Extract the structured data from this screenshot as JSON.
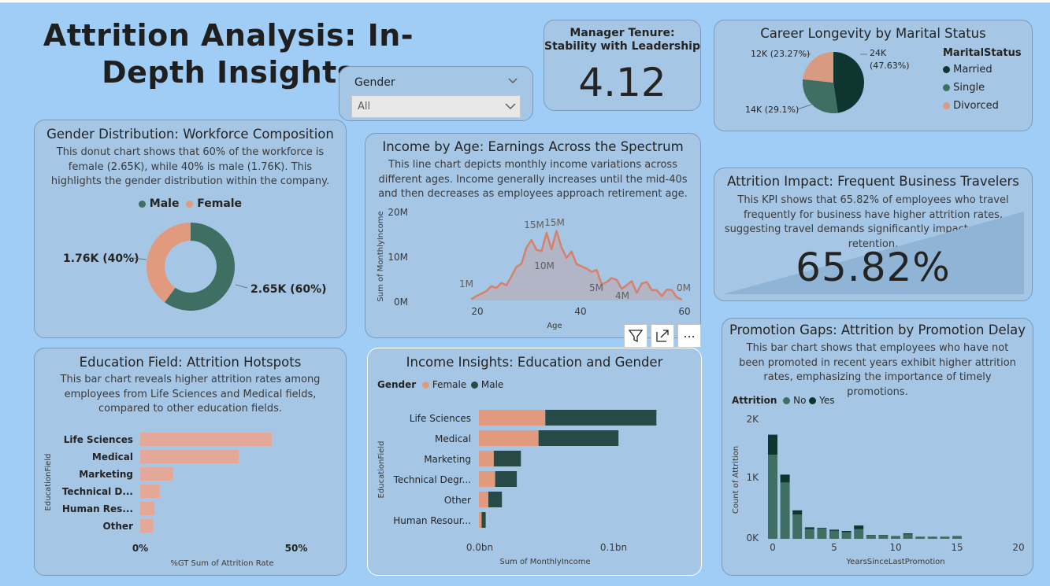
{
  "page_title": "Attrition Analysis: In-Depth Insights",
  "colors": {
    "background": "#9fcdf6",
    "card": "#a5c7e5",
    "male": "#3f6e63",
    "female": "#e19a7e",
    "married": "#0e3530",
    "single": "#3f6e63",
    "divorced": "#d99a82",
    "line": "#d98069",
    "bar_salmon": "#e4a899",
    "dark_teal": "#274a47"
  },
  "slicer": {
    "label": "Gender",
    "value": "All"
  },
  "manager_tenure": {
    "title_line1": "Manager Tenure:",
    "title_line2": "Stability with Leadership",
    "value": "4.12"
  },
  "marital": {
    "title": "Career Longevity by Marital Status",
    "legend_title": "MaritalStatus",
    "label_married_1": "24K",
    "label_married_2": "(47.63%)",
    "label_divorced": "12K (23.27%)",
    "label_single": "14K (29.1%)",
    "chart_data": {
      "type": "pie",
      "categories": [
        "Married",
        "Single",
        "Divorced"
      ],
      "values": [
        47.63,
        29.1,
        23.27
      ]
    }
  },
  "gender_dist": {
    "title": "Gender Distribution: Workforce Composition",
    "description": "This donut chart shows that 60% of the workforce is female (2.65K), while 40% is male (1.76K). This highlights the gender distribution within the company.",
    "legend": [
      "Male",
      "Female"
    ],
    "label_male": "1.76K (40%)",
    "label_female": "2.65K (60%)",
    "chart_data": {
      "type": "pie",
      "categories": [
        "Male",
        "Female"
      ],
      "values": [
        40,
        60
      ]
    }
  },
  "income_age": {
    "title": "Income by Age: Earnings Across the Spectrum",
    "description": "This line chart depicts monthly income variations across different ages. Income generally increases until the mid-40s and then decreases as employees approach retirement age.",
    "xlabel": "Age",
    "ylabel": "Sum of MonthlyIncome",
    "yticks": [
      "20M",
      "10M",
      "0M"
    ],
    "xticks": [
      "20",
      "40",
      "60"
    ],
    "annotations": [
      "1M",
      "15M",
      "15M",
      "10M",
      "5M",
      "4M",
      "0M"
    ],
    "chart_data": {
      "type": "area",
      "x": [
        18,
        19,
        20,
        21,
        22,
        23,
        24,
        25,
        26,
        27,
        28,
        29,
        30,
        31,
        32,
        33,
        34,
        35,
        36,
        37,
        38,
        39,
        40,
        41,
        42,
        43,
        44,
        45,
        46,
        47,
        48,
        49,
        50,
        51,
        52,
        53,
        54,
        55,
        56,
        57,
        58,
        59,
        60
      ],
      "y": [
        0.3,
        1.0,
        1.5,
        2.1,
        3.2,
        2.8,
        3.9,
        3.4,
        5.4,
        7.5,
        8.2,
        11.8,
        13.5,
        11.3,
        11.0,
        15.1,
        11.4,
        15.5,
        11.8,
        9.5,
        10.9,
        8.1,
        7.6,
        7.1,
        6.4,
        6.8,
        3.6,
        4.1,
        5.0,
        4.6,
        2.6,
        3.4,
        4.3,
        1.7,
        3.8,
        4.1,
        2.3,
        2.3,
        1.0,
        2.4,
        2.3,
        0.7,
        0.2
      ],
      "ylim": [
        0,
        20
      ],
      "xlim": [
        17,
        61
      ]
    }
  },
  "visual_header": {
    "filter": "filter-icon",
    "focus": "focus-mode-icon",
    "more": "..."
  },
  "business_travel": {
    "title": "Attrition Impact: Frequent Business Travelers",
    "description": "This KPI shows that 65.82% of employees who travel frequently for business have higher attrition rates, suggesting travel demands significantly impact employee retention.",
    "value": "65.82%",
    "chart_data": {
      "type": "area",
      "values": [
        0.1,
        1.0
      ]
    }
  },
  "education_field": {
    "title": "Education Field: Attrition Hotspots",
    "description": "This bar chart reveals higher attrition rates among employees from Life Sciences and Medical fields, compared to other education fields.",
    "ylabel": "EducationField",
    "xlabel": "%GT Sum of Attrition Rate",
    "xticks": [
      "0%",
      "50%"
    ],
    "chart_data": {
      "type": "bar",
      "categories": [
        "Life Sciences",
        "Medical",
        "Marketing",
        "Technical D...",
        "Human Res...",
        "Other"
      ],
      "values": [
        42.2,
        31.6,
        10.5,
        6.3,
        4.6,
        4.2
      ],
      "xlim": [
        0,
        50
      ]
    }
  },
  "income_edu": {
    "title": "Income Insights: Education and Gender",
    "legend_title": "Gender",
    "legend": [
      "Female",
      "Male"
    ],
    "ylabel": "EducationField",
    "xlabel": "Sum of MonthlyIncome",
    "xticks": [
      "0.0bn",
      "0.1bn"
    ],
    "chart_data": {
      "type": "bar",
      "categories": [
        "Life Sciences",
        "Medical",
        "Marketing",
        "Technical Degr...",
        "Other",
        "Human Resour..."
      ],
      "series": [
        {
          "name": "Female",
          "values": [
            0.049,
            0.044,
            0.011,
            0.012,
            0.007,
            0.002
          ]
        },
        {
          "name": "Male",
          "values": [
            0.082,
            0.059,
            0.02,
            0.016,
            0.01,
            0.003
          ]
        }
      ],
      "xlim": [
        0,
        0.13
      ]
    }
  },
  "promotion": {
    "title": "Promotion Gaps: Attrition by Promotion Delay",
    "description": "This bar chart shows that employees who have not been promoted in recent years exhibit higher attrition rates, emphasizing the importance of timely promotions.",
    "legend_title": "Attrition",
    "legend": [
      "No",
      "Yes"
    ],
    "ylabel": "Count of Attrition",
    "xlabel": "YearsSinceLastPromotion",
    "yticks": [
      "2K",
      "1K",
      "0K"
    ],
    "xticks": [
      "0",
      "5",
      "10",
      "15",
      "20"
    ],
    "chart_data": {
      "type": "bar",
      "categories": [
        0,
        1,
        2,
        3,
        4,
        5,
        6,
        7,
        8,
        9,
        10,
        11,
        12,
        13,
        14,
        15
      ],
      "series": [
        {
          "name": "No",
          "values": [
            1390,
            930,
            400,
            160,
            170,
            130,
            110,
            160,
            60,
            60,
            40,
            75,
            30,
            30,
            30,
            40
          ]
        },
        {
          "name": "Yes",
          "values": [
            330,
            130,
            70,
            30,
            10,
            20,
            20,
            60,
            5,
            5,
            5,
            15,
            5,
            5,
            5,
            5
          ]
        }
      ],
      "ylim": [
        0,
        2200
      ]
    }
  }
}
